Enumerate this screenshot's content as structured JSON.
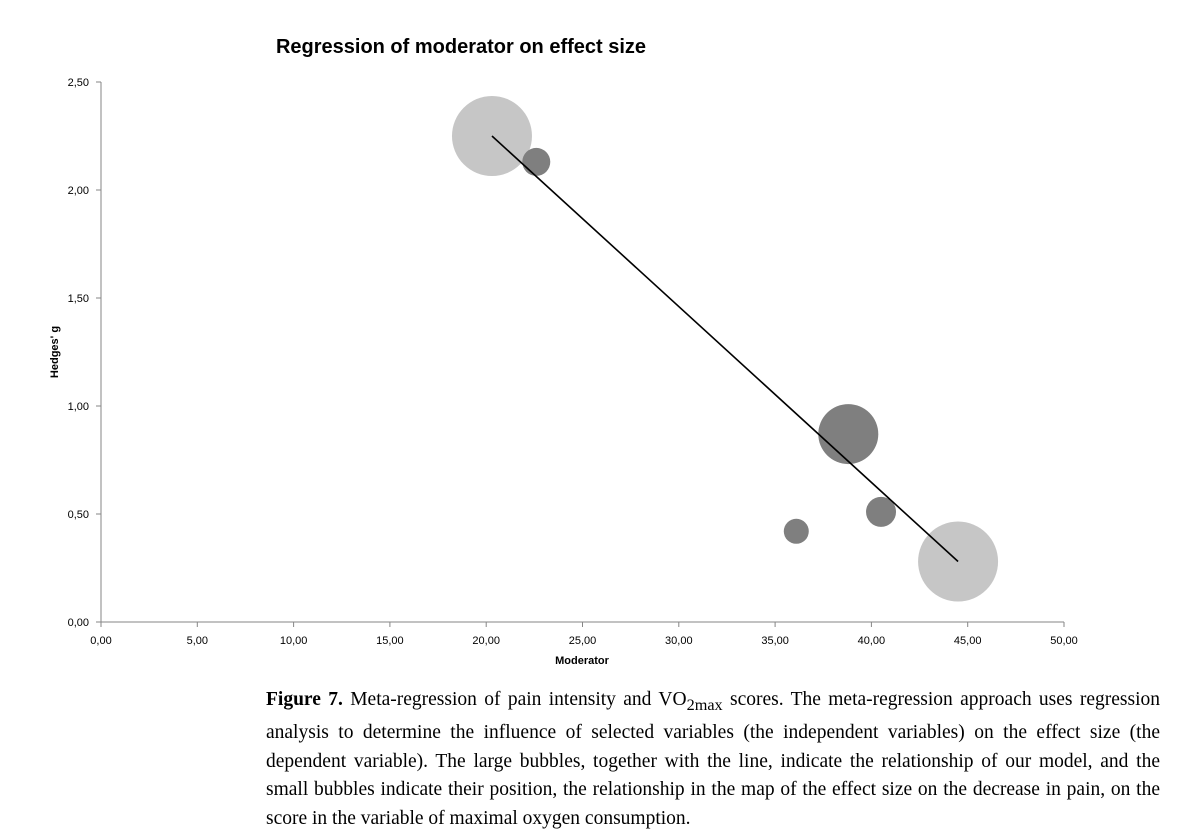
{
  "chart_data": {
    "type": "bubble",
    "title": "Regression of moderator on effect size",
    "xlabel": "Moderator",
    "ylabel": "Hedges' g",
    "xlim": [
      0,
      50
    ],
    "ylim": [
      0,
      2.5
    ],
    "xticks": [
      "0,00",
      "5,00",
      "10,00",
      "15,00",
      "20,00",
      "25,00",
      "30,00",
      "35,00",
      "40,00",
      "45,00",
      "50,00"
    ],
    "yticks": [
      "0,00",
      "0,50",
      "1,00",
      "1,50",
      "2,00",
      "2,50"
    ],
    "grid": false,
    "points": [
      {
        "x": 20.3,
        "y": 2.25,
        "size": 40,
        "color": "#c6c6c6"
      },
      {
        "x": 22.6,
        "y": 2.13,
        "size": 14,
        "color": "#7f7f7f"
      },
      {
        "x": 38.8,
        "y": 0.87,
        "size": 30,
        "color": "#7f7f7f"
      },
      {
        "x": 40.5,
        "y": 0.51,
        "size": 15,
        "color": "#7f7f7f"
      },
      {
        "x": 36.1,
        "y": 0.42,
        "size": 12.5,
        "color": "#7f7f7f"
      },
      {
        "x": 44.5,
        "y": 0.28,
        "size": 40,
        "color": "#c6c6c6"
      }
    ],
    "regression_line": {
      "x": [
        20.3,
        44.5
      ],
      "y": [
        2.25,
        0.28
      ],
      "color": "#000000"
    }
  },
  "caption": {
    "label": "Figure 7.",
    "text_before": " Meta-regression of pain intensity and VO",
    "sub1": "2",
    "sub2": "max",
    "text_after": " scores. The meta-regression approach uses regression analysis to determine the influence of selected variables (the independent variables) on the effect size (the dependent variable). The large bubbles, together with the line, indicate the relationship of our model, and the small bubbles indicate their position, the relationship in the map of the effect size on the decrease in pain, on the score in the variable of maximal oxygen consumption."
  }
}
